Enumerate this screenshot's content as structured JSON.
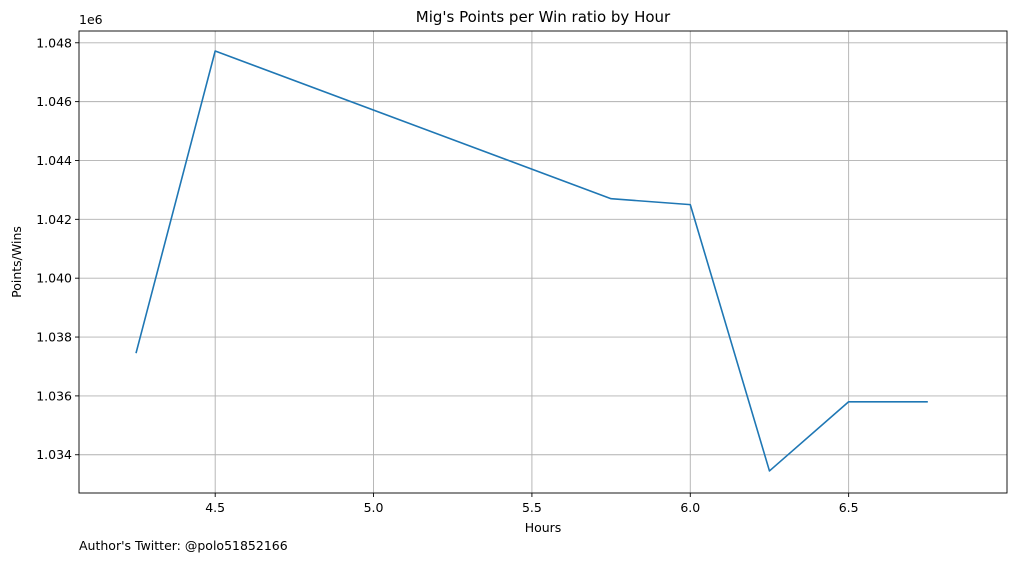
{
  "chart_data": {
    "type": "line",
    "title": "Mig's Points per Win ratio by Hour",
    "xlabel": "Hours",
    "ylabel": "Points/Wins",
    "y_offset_label": "1e6",
    "xlim": [
      4.07,
      7.0
    ],
    "ylim": [
      1032.7,
      1048.4
    ],
    "x_ticks": [
      4.5,
      5.0,
      5.5,
      6.0,
      6.5
    ],
    "x_tick_labels": [
      "4.5",
      "5.0",
      "5.5",
      "6.0",
      "6.5"
    ],
    "y_ticks": [
      1034,
      1036,
      1038,
      1040,
      1042,
      1044,
      1046,
      1048
    ],
    "y_tick_labels": [
      "1.034",
      "1.036",
      "1.038",
      "1.040",
      "1.042",
      "1.044",
      "1.046",
      "1.048"
    ],
    "grid": true,
    "series": [
      {
        "color": "#1f77b4",
        "x": [
          4.25,
          4.5,
          5.75,
          6.0,
          6.25,
          6.5,
          6.75
        ],
        "y": [
          1037.45,
          1047.72,
          1042.7,
          1042.5,
          1033.45,
          1035.8,
          1035.8
        ]
      }
    ]
  },
  "footnote": "Author's Twitter: @polo51852166"
}
